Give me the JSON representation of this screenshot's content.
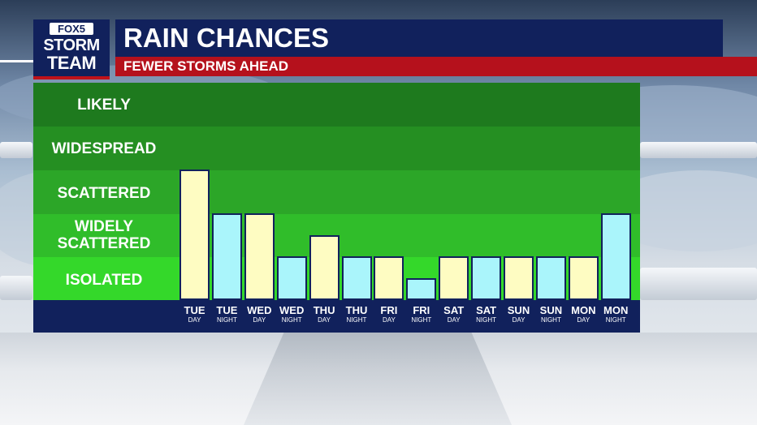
{
  "logo": {
    "top": "FOX5",
    "line1": "STORM",
    "line2": "TEAM"
  },
  "header": {
    "title": "RAIN CHANCES",
    "subtitle": "FEWER STORMS AHEAD"
  },
  "colors": {
    "navy": "#11215c",
    "red": "#b5111c",
    "day_bar": "#fefcc2",
    "night_bar": "#aaf5fb",
    "bands": [
      "#1e7a1e",
      "#258f22",
      "#2ca628",
      "#30bd2a",
      "#34d82a"
    ]
  },
  "chart_data": {
    "type": "bar",
    "title": "RAIN CHANCES",
    "subtitle": "FEWER STORMS AHEAD",
    "y_categories": [
      "ISOLATED",
      "WIDELY SCATTERED",
      "SCATTERED",
      "WIDESPREAD",
      "LIKELY"
    ],
    "ylim": [
      0,
      5
    ],
    "categories": [
      {
        "day": "TUE",
        "period": "DAY"
      },
      {
        "day": "TUE",
        "period": "NIGHT"
      },
      {
        "day": "WED",
        "period": "DAY"
      },
      {
        "day": "WED",
        "period": "NIGHT"
      },
      {
        "day": "THU",
        "period": "DAY"
      },
      {
        "day": "THU",
        "period": "NIGHT"
      },
      {
        "day": "FRI",
        "period": "DAY"
      },
      {
        "day": "FRI",
        "period": "NIGHT"
      },
      {
        "day": "SAT",
        "period": "DAY"
      },
      {
        "day": "SAT",
        "period": "NIGHT"
      },
      {
        "day": "SUN",
        "period": "DAY"
      },
      {
        "day": "SUN",
        "period": "NIGHT"
      },
      {
        "day": "MON",
        "period": "DAY"
      },
      {
        "day": "MON",
        "period": "NIGHT"
      }
    ],
    "values": [
      3,
      2,
      2,
      1,
      1.5,
      1,
      1,
      0.5,
      1,
      1,
      1,
      1,
      1,
      2
    ]
  }
}
